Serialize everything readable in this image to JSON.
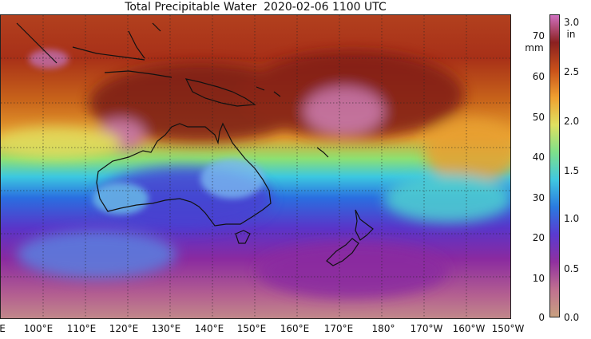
{
  "title": "Total Precipitable Water  2020-02-06 1100 UTC",
  "map": {
    "x_ticks": [
      "E",
      "100°E",
      "110°E",
      "120°E",
      "130°E",
      "140°E",
      "150°E",
      "160°E",
      "170°E",
      "180°",
      "170°W",
      "160°W",
      "150°W"
    ],
    "features": [
      "australia",
      "new-zealand",
      "tasmania",
      "new-guinea",
      "indonesia",
      "new-caledonia"
    ]
  },
  "colorbar": {
    "mm_unit": "mm",
    "in_unit": "in",
    "mm_ticks": [
      "70",
      "60",
      "50",
      "40",
      "30",
      "20",
      "10",
      "0"
    ],
    "in_ticks": [
      "3.0",
      "2.5",
      "2.0",
      "1.5",
      "1.0",
      "0.5",
      "0.0"
    ],
    "colors": [
      "#d070c0",
      "#8b2020",
      "#c8501a",
      "#f0a030",
      "#e0e060",
      "#7ee08a",
      "#40c8e0",
      "#2a7ae0",
      "#5a3ad0",
      "#9030a0",
      "#c07090",
      "#c8a080"
    ]
  }
}
